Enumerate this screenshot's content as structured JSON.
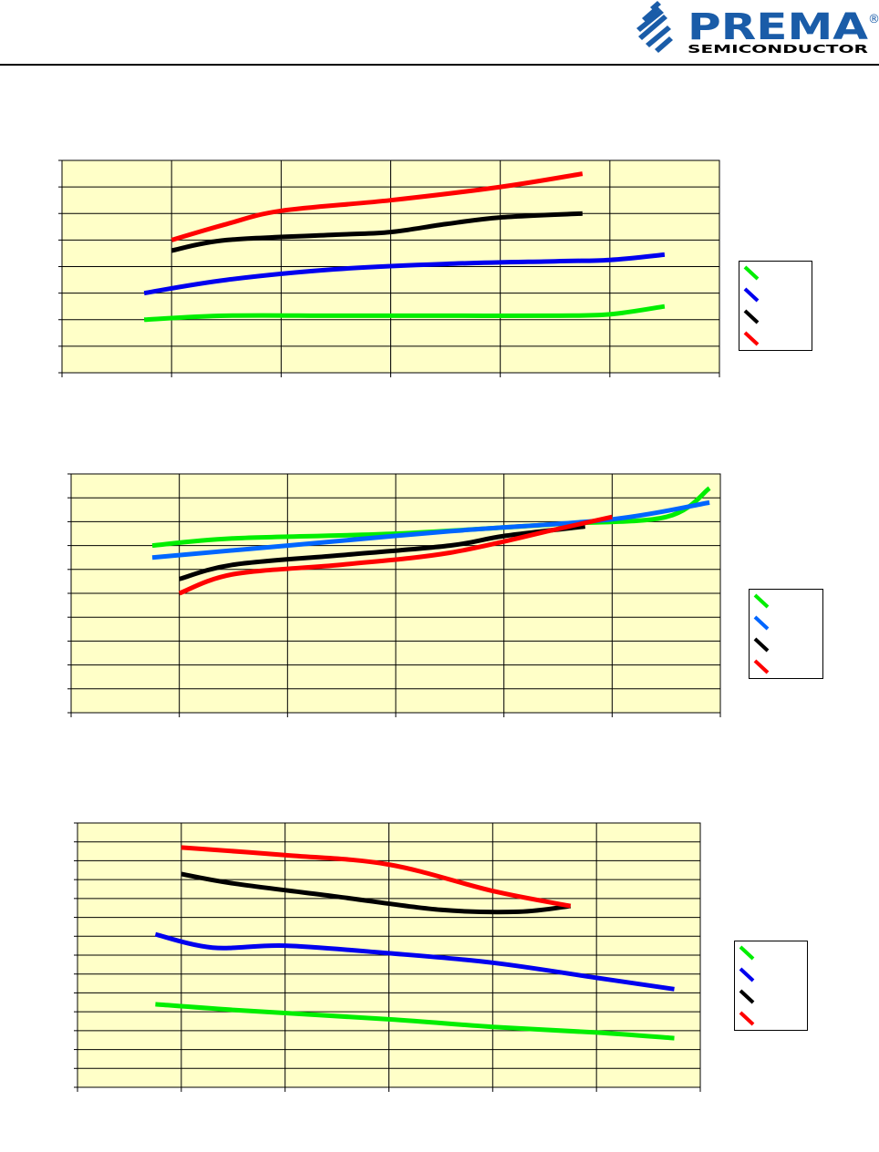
{
  "header": {
    "logo": {
      "name": "PREMA",
      "tagline": "SEMICONDUCTOR",
      "registered": "®",
      "brand_color": "#1a5ca8"
    }
  },
  "styles": {
    "plot_bg": "#ffffc8",
    "grid_color": "#000000"
  },
  "chart_data": [
    {
      "type": "line",
      "title": "",
      "xlabel": "",
      "ylabel": "",
      "xlim": [
        0,
        6
      ],
      "ylim": [
        0,
        8
      ],
      "x_grid_lines": 6,
      "y_grid_lines": 8,
      "grid": true,
      "legend_position": "right",
      "series": [
        {
          "color": "#00ee00",
          "points": [
            [
              0.75,
              2.0
            ],
            [
              1.5,
              2.15
            ],
            [
              2.5,
              2.15
            ],
            [
              3.5,
              2.15
            ],
            [
              4.5,
              2.15
            ],
            [
              5.0,
              2.2
            ],
            [
              5.5,
              2.5
            ]
          ]
        },
        {
          "color": "#0000ee",
          "points": [
            [
              0.75,
              3.0
            ],
            [
              1.5,
              3.5
            ],
            [
              2.5,
              3.9
            ],
            [
              3.5,
              4.1
            ],
            [
              4.5,
              4.2
            ],
            [
              5.0,
              4.25
            ],
            [
              5.5,
              4.45
            ]
          ]
        },
        {
          "color": "#000000",
          "points": [
            [
              1.0,
              4.6
            ],
            [
              1.5,
              5.0
            ],
            [
              2.5,
              5.2
            ],
            [
              3.0,
              5.3
            ],
            [
              3.5,
              5.6
            ],
            [
              4.0,
              5.85
            ],
            [
              4.75,
              6.0
            ]
          ]
        },
        {
          "color": "#ff0000",
          "points": [
            [
              1.0,
              5.0
            ],
            [
              1.5,
              5.6
            ],
            [
              2.0,
              6.1
            ],
            [
              3.0,
              6.5
            ],
            [
              4.0,
              7.0
            ],
            [
              4.75,
              7.5
            ]
          ]
        }
      ]
    },
    {
      "type": "line",
      "title": "",
      "xlabel": "",
      "ylabel": "",
      "xlim": [
        0,
        6
      ],
      "ylim": [
        0,
        10
      ],
      "x_grid_lines": 6,
      "y_grid_lines": 10,
      "grid": true,
      "legend_position": "right",
      "series": [
        {
          "color": "#00ee00",
          "points": [
            [
              0.75,
              7.0
            ],
            [
              1.5,
              7.3
            ],
            [
              3.0,
              7.5
            ],
            [
              4.5,
              7.9
            ],
            [
              5.5,
              8.2
            ],
            [
              5.9,
              9.4
            ]
          ]
        },
        {
          "color": "#0066ff",
          "points": [
            [
              0.75,
              6.5
            ],
            [
              2.0,
              7.0
            ],
            [
              3.5,
              7.6
            ],
            [
              5.0,
              8.1
            ],
            [
              5.9,
              8.8
            ]
          ]
        },
        {
          "color": "#000000",
          "points": [
            [
              1.0,
              5.6
            ],
            [
              1.5,
              6.2
            ],
            [
              2.5,
              6.6
            ],
            [
              3.5,
              7.0
            ],
            [
              4.0,
              7.4
            ],
            [
              4.75,
              7.8
            ]
          ]
        },
        {
          "color": "#ff0000",
          "points": [
            [
              1.0,
              5.0
            ],
            [
              1.5,
              5.8
            ],
            [
              2.5,
              6.2
            ],
            [
              3.5,
              6.7
            ],
            [
              4.5,
              7.7
            ],
            [
              5.0,
              8.2
            ]
          ]
        }
      ]
    },
    {
      "type": "line",
      "title": "",
      "xlabel": "",
      "ylabel": "",
      "xlim": [
        0,
        6
      ],
      "ylim": [
        0,
        14
      ],
      "x_grid_lines": 6,
      "y_grid_lines": 14,
      "grid": true,
      "legend_position": "right",
      "series": [
        {
          "color": "#00ee00",
          "points": [
            [
              0.75,
              4.4
            ],
            [
              1.5,
              4.1
            ],
            [
              3.0,
              3.6
            ],
            [
              4.0,
              3.2
            ],
            [
              5.0,
              2.9
            ],
            [
              5.75,
              2.6
            ]
          ]
        },
        {
          "color": "#0000ee",
          "points": [
            [
              0.75,
              8.1
            ],
            [
              1.3,
              7.4
            ],
            [
              2.0,
              7.5
            ],
            [
              3.0,
              7.1
            ],
            [
              4.0,
              6.6
            ],
            [
              5.0,
              5.8
            ],
            [
              5.75,
              5.2
            ]
          ]
        },
        {
          "color": "#000000",
          "points": [
            [
              1.0,
              11.3
            ],
            [
              1.5,
              10.8
            ],
            [
              2.5,
              10.1
            ],
            [
              3.5,
              9.4
            ],
            [
              4.25,
              9.3
            ],
            [
              4.75,
              9.6
            ]
          ]
        },
        {
          "color": "#ff0000",
          "points": [
            [
              1.0,
              12.7
            ],
            [
              2.0,
              12.3
            ],
            [
              3.0,
              11.8
            ],
            [
              4.0,
              10.4
            ],
            [
              4.75,
              9.6
            ]
          ]
        }
      ]
    }
  ]
}
